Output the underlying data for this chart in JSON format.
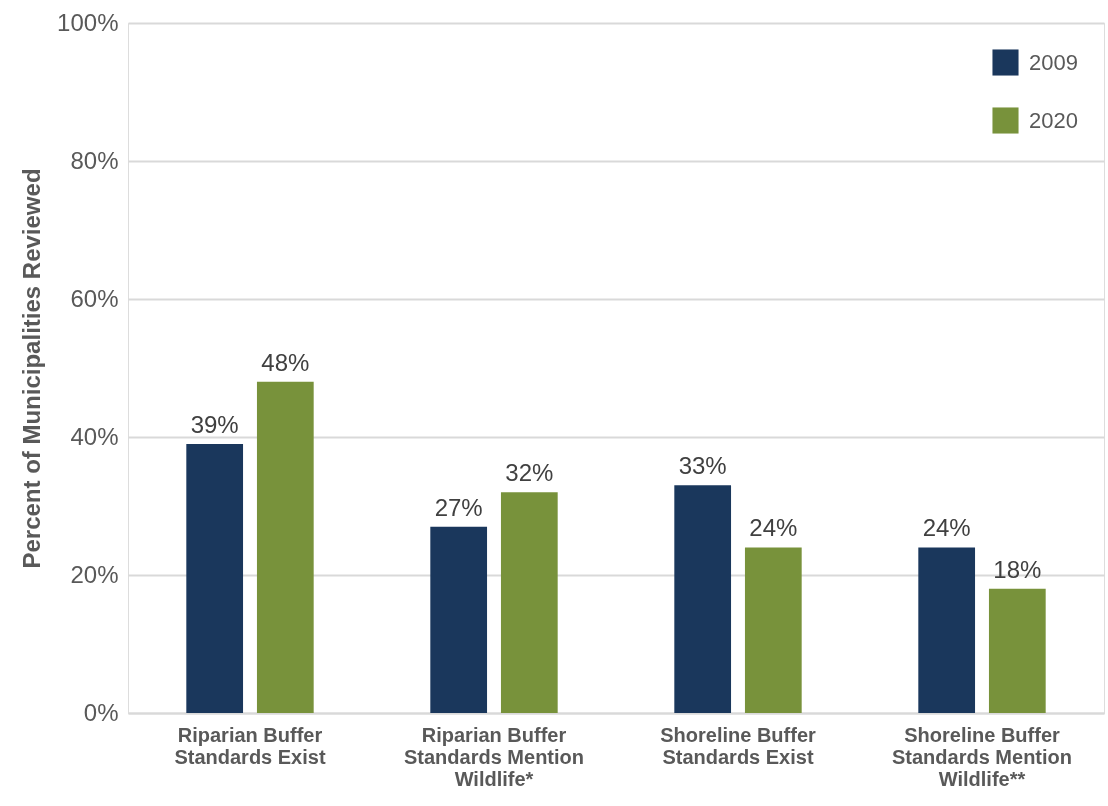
{
  "chart_data": {
    "type": "bar",
    "categories": [
      "Riparian Buffer Standards Exist",
      "Riparian Buffer Standards Mention Wildlife*",
      "Shoreline Buffer Standards Exist",
      "Shoreline Buffer Standards Mention Wildlife**"
    ],
    "series": [
      {
        "name": "2009",
        "color": "#1a375c",
        "values": [
          39,
          27,
          33,
          24
        ],
        "value_labels": [
          "39%",
          "27%",
          "33%",
          "24%"
        ]
      },
      {
        "name": "2020",
        "color": "#78923b",
        "values": [
          48,
          32,
          24,
          18
        ],
        "value_labels": [
          "48%",
          "32%",
          "24%",
          "18%"
        ]
      }
    ],
    "ylabel": "Percent of Municipalities Reviewed",
    "ylim": [
      0,
      100
    ],
    "yticks": [
      {
        "value": 0,
        "label": "0%"
      },
      {
        "value": 20,
        "label": "20%"
      },
      {
        "value": 40,
        "label": "40%"
      },
      {
        "value": 60,
        "label": "60%"
      },
      {
        "value": 80,
        "label": "80%"
      },
      {
        "value": 100,
        "label": "100%"
      }
    ],
    "grid": "y",
    "legend": "top right"
  }
}
